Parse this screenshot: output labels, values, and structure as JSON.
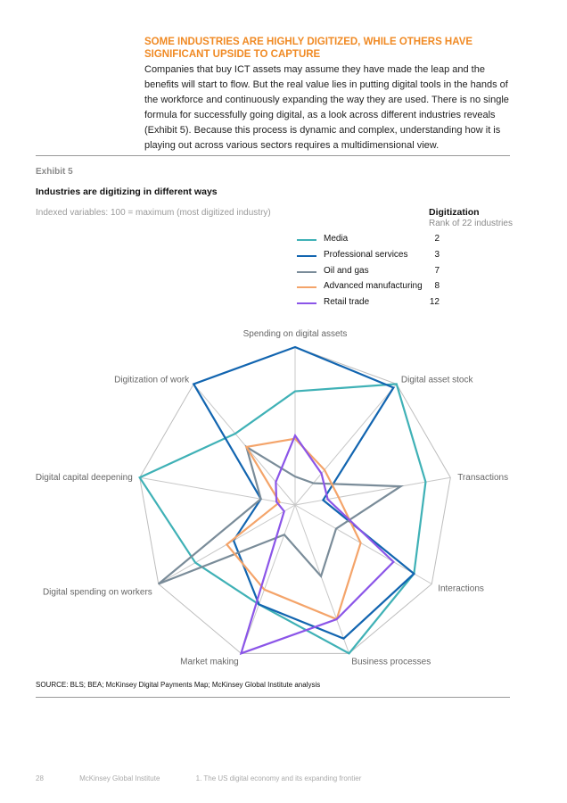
{
  "section": {
    "heading": "SOME INDUSTRIES ARE HIGHLY DIGITIZED, WHILE OTHERS HAVE SIGNIFICANT UPSIDE TO CAPTURE",
    "intro": "Companies that buy ICT assets may assume they have made the leap and the benefits will start to flow. But the real value lies in putting digital tools in the hands of the workforce and continuously expanding the way they are used. There is no single formula for successfully going digital, as a look across different industries reveals (Exhibit 5). Because this process is dynamic and complex, understanding how it is playing out across various sectors requires a multidimensional view."
  },
  "exhibit": {
    "label": "Exhibit 5",
    "title": "Industries are digitizing in different ways",
    "subtitle": "Indexed variables: 100 = maximum (most digitized industry)",
    "source": "SOURCE: BLS; BEA; McKinsey Digital Payments Map; McKinsey Global Institute analysis"
  },
  "legend": {
    "title": "Digitization",
    "subtitle": "Rank of 22 industries"
  },
  "chart_data": {
    "type": "radar",
    "axes": [
      "Spending on digital assets",
      "Digital asset stock",
      "Transactions",
      "Interactions",
      "Business processes",
      "Market making",
      "Digital spending on workers",
      "Digital capital deepening",
      "Digitization of work"
    ],
    "range": [
      0,
      100
    ],
    "series": [
      {
        "name": "Media",
        "rank": "2",
        "color": "#3fb1b6",
        "values": [
          72,
          100,
          84,
          87,
          100,
          67,
          73,
          100,
          59
        ]
      },
      {
        "name": "Professional services",
        "rank": "3",
        "color": "#1265b0",
        "values": [
          100,
          97,
          18,
          87,
          90,
          67,
          45,
          22,
          100
        ]
      },
      {
        "name": "Oil and gas",
        "rank": "7",
        "color": "#7a8c99",
        "values": [
          18,
          18,
          68,
          30,
          48,
          20,
          100,
          22,
          48
        ]
      },
      {
        "name": "Advanced manufacturing",
        "rank": "8",
        "color": "#f4a46a",
        "values": [
          42,
          29,
          28,
          48,
          77,
          57,
          50,
          10,
          48
        ]
      },
      {
        "name": "Retail trade",
        "rank": "12",
        "color": "#8b55e8",
        "values": [
          44,
          26,
          21,
          72,
          77,
          100,
          8,
          12,
          19
        ]
      }
    ]
  },
  "footer": {
    "page_number": "28",
    "publisher": "McKinsey Global Institute",
    "chapter": "1. The US digital economy and its expanding frontier"
  }
}
